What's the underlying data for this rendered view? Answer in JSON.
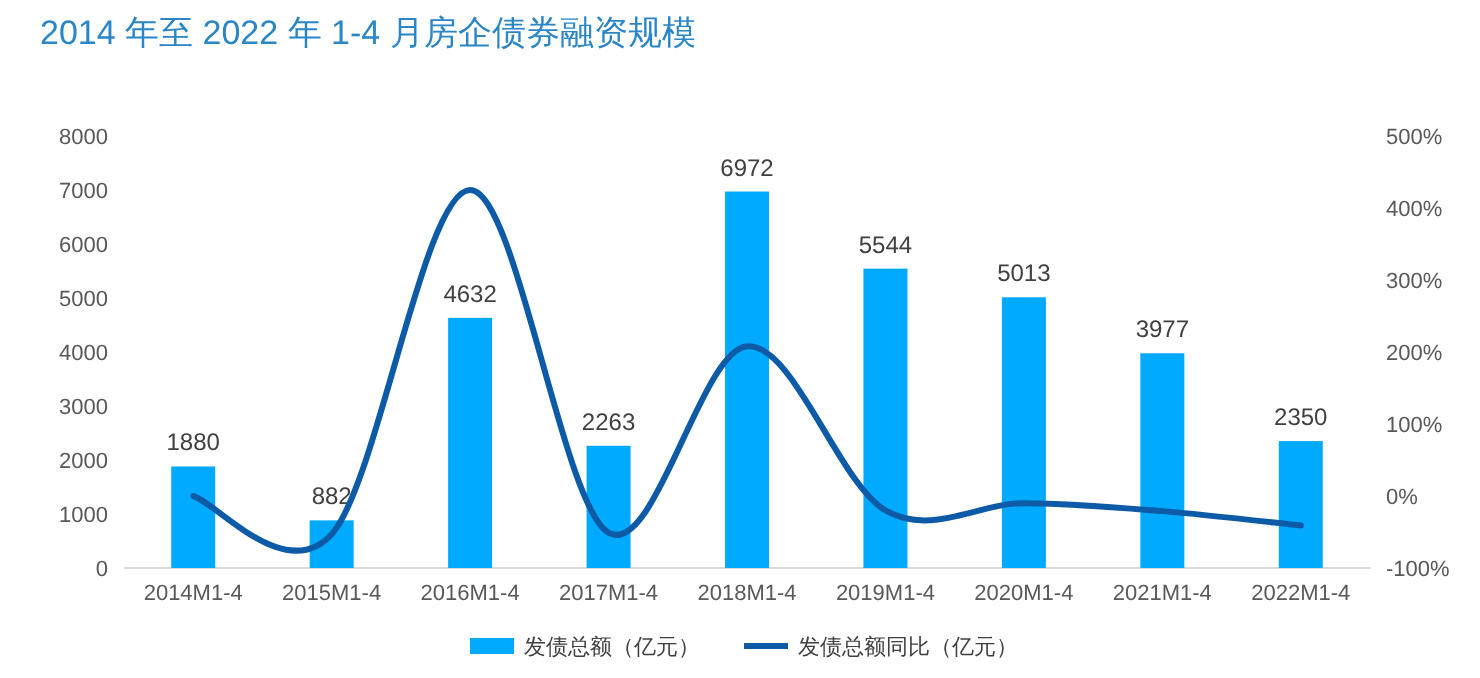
{
  "chart_data": {
    "type": "bar",
    "title": "2014 年至 2022 年 1-4 月房企债券融资规模",
    "categories": [
      "2014M1-4",
      "2015M1-4",
      "2016M1-4",
      "2017M1-4",
      "2018M1-4",
      "2019M1-4",
      "2020M1-4",
      "2021M1-4",
      "2022M1-4"
    ],
    "series": [
      {
        "name": "发债总额（亿元）",
        "color": "#00aaff",
        "values": [
          1880,
          882,
          4632,
          2263,
          6972,
          5544,
          5013,
          3977,
          2350
        ],
        "value_labels": [
          "1880",
          "882",
          "4632",
          "2263",
          "6972",
          "5544",
          "5013",
          "3977",
          "2350"
        ]
      },
      {
        "name": "发债总额同比（亿元）",
        "type": "line",
        "axis": "y2",
        "color": "#0d5aa7",
        "values": [
          0,
          -53,
          425,
          -51,
          208,
          -20,
          -10,
          -21,
          -41
        ]
      }
    ],
    "ylim": [
      0,
      8000
    ],
    "yticks": [
      0,
      1000,
      2000,
      3000,
      4000,
      5000,
      6000,
      7000,
      8000
    ],
    "y2lim": [
      -100,
      500
    ],
    "y2ticks": [
      {
        "value": -100,
        "label": "-100%"
      },
      {
        "value": 0,
        "label": "0%"
      },
      {
        "value": 100,
        "label": "100%"
      },
      {
        "value": 200,
        "label": "200%"
      },
      {
        "value": 300,
        "label": "300%"
      },
      {
        "value": 400,
        "label": "400%"
      },
      {
        "value": 500,
        "label": "500%"
      }
    ],
    "legend": "bottom",
    "marker": "none",
    "line_style": "solid"
  }
}
